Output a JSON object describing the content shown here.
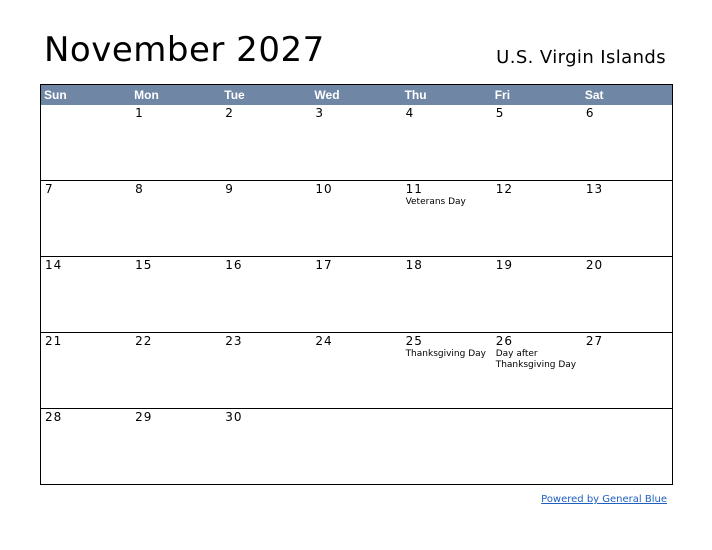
{
  "header": {
    "title": "November 2027",
    "region": "U.S. Virgin Islands"
  },
  "colors": {
    "header_bg": "#6f86a5",
    "header_text": "#ffffff",
    "link": "#1f5fbf"
  },
  "weekdays": [
    "Sun",
    "Mon",
    "Tue",
    "Wed",
    "Thu",
    "Fri",
    "Sat"
  ],
  "weeks": [
    [
      {
        "day": "",
        "holiday": ""
      },
      {
        "day": "1",
        "holiday": ""
      },
      {
        "day": "2",
        "holiday": ""
      },
      {
        "day": "3",
        "holiday": ""
      },
      {
        "day": "4",
        "holiday": ""
      },
      {
        "day": "5",
        "holiday": ""
      },
      {
        "day": "6",
        "holiday": ""
      }
    ],
    [
      {
        "day": "7",
        "holiday": ""
      },
      {
        "day": "8",
        "holiday": ""
      },
      {
        "day": "9",
        "holiday": ""
      },
      {
        "day": "10",
        "holiday": ""
      },
      {
        "day": "11",
        "holiday": "Veterans Day"
      },
      {
        "day": "12",
        "holiday": ""
      },
      {
        "day": "13",
        "holiday": ""
      }
    ],
    [
      {
        "day": "14",
        "holiday": ""
      },
      {
        "day": "15",
        "holiday": ""
      },
      {
        "day": "16",
        "holiday": ""
      },
      {
        "day": "17",
        "holiday": ""
      },
      {
        "day": "18",
        "holiday": ""
      },
      {
        "day": "19",
        "holiday": ""
      },
      {
        "day": "20",
        "holiday": ""
      }
    ],
    [
      {
        "day": "21",
        "holiday": ""
      },
      {
        "day": "22",
        "holiday": ""
      },
      {
        "day": "23",
        "holiday": ""
      },
      {
        "day": "24",
        "holiday": ""
      },
      {
        "day": "25",
        "holiday": "Thanksgiving Day"
      },
      {
        "day": "26",
        "holiday": "Day after Thanksgiving Day"
      },
      {
        "day": "27",
        "holiday": ""
      }
    ],
    [
      {
        "day": "28",
        "holiday": ""
      },
      {
        "day": "29",
        "holiday": ""
      },
      {
        "day": "30",
        "holiday": ""
      },
      {
        "day": "",
        "holiday": ""
      },
      {
        "day": "",
        "holiday": ""
      },
      {
        "day": "",
        "holiday": ""
      },
      {
        "day": "",
        "holiday": ""
      }
    ]
  ],
  "footer": {
    "link_text": "Powered by General Blue"
  }
}
